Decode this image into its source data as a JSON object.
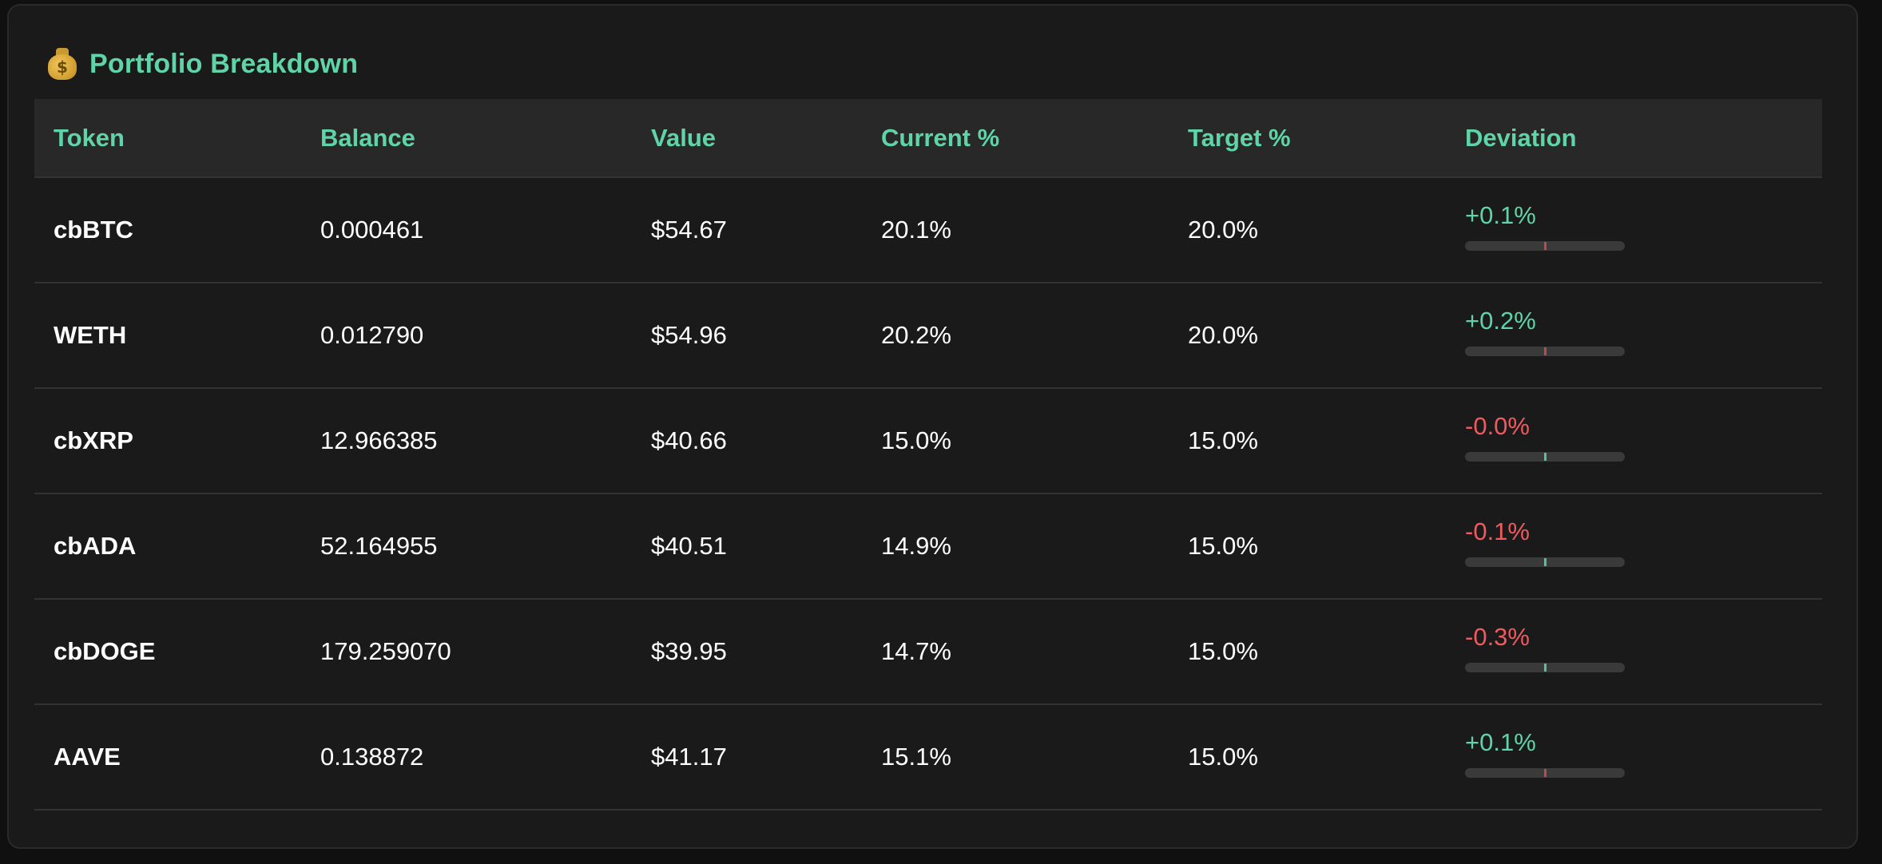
{
  "card": {
    "icon": "moneybag-icon",
    "title": "Portfolio Breakdown"
  },
  "table": {
    "headers": [
      "Token",
      "Balance",
      "Value",
      "Current %",
      "Target %",
      "Deviation"
    ],
    "rows": [
      {
        "token": "cbBTC",
        "balance": "0.000461",
        "value": "$54.67",
        "current": "20.1%",
        "target": "20.0%",
        "deviation": "+0.1%",
        "direction": "positive"
      },
      {
        "token": "WETH",
        "balance": "0.012790",
        "value": "$54.96",
        "current": "20.2%",
        "target": "20.0%",
        "deviation": "+0.2%",
        "direction": "positive"
      },
      {
        "token": "cbXRP",
        "balance": "12.966385",
        "value": "$40.66",
        "current": "15.0%",
        "target": "15.0%",
        "deviation": "-0.0%",
        "direction": "negative"
      },
      {
        "token": "cbADA",
        "balance": "52.164955",
        "value": "$40.51",
        "current": "14.9%",
        "target": "15.0%",
        "deviation": "-0.1%",
        "direction": "negative"
      },
      {
        "token": "cbDOGE",
        "balance": "179.259070",
        "value": "$39.95",
        "current": "14.7%",
        "target": "15.0%",
        "deviation": "-0.3%",
        "direction": "negative"
      },
      {
        "token": "AAVE",
        "balance": "0.138872",
        "value": "$41.17",
        "current": "15.1%",
        "target": "15.0%",
        "deviation": "+0.1%",
        "direction": "positive"
      }
    ]
  },
  "colors": {
    "accent": "#5fd4a8",
    "negative": "#ef5a5f",
    "background": "#1a1a1a",
    "header_row": "#282828"
  }
}
